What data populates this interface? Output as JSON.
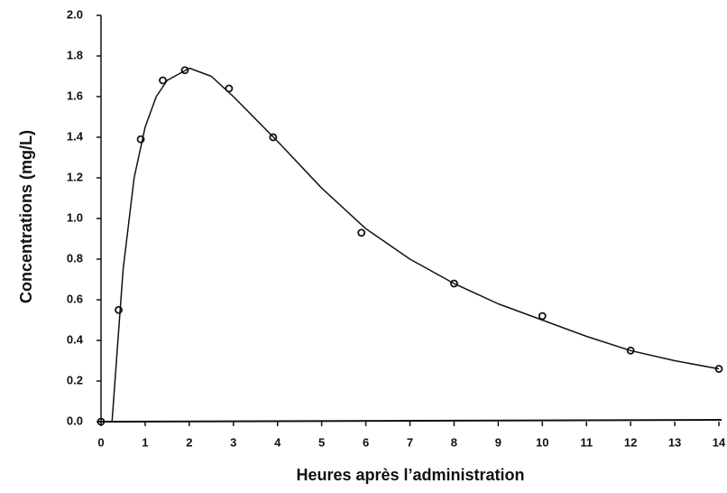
{
  "chart_data": {
    "type": "scatter",
    "x_label": "Heures après l’administration",
    "y_label": "Concentrations (mg/L)",
    "xlim": [
      0,
      14
    ],
    "xticks": [
      0,
      1,
      2,
      3,
      4,
      5,
      6,
      7,
      8,
      9,
      10,
      11,
      12,
      13,
      14
    ],
    "ylim": [
      0,
      2
    ],
    "yticks": [
      {
        "value": 0,
        "label": "0.0"
      },
      0.2,
      0.4,
      0.6,
      0.8,
      {
        "value": 1,
        "label": "1.0"
      },
      1.2,
      1.4,
      1.6,
      1.8,
      {
        "value": 2,
        "label": "2.0"
      }
    ],
    "grid": false,
    "series": [
      {
        "type": "scatter",
        "color": "#111111",
        "x": [
          0,
          0.4,
          0.9,
          1.4,
          1.9,
          2.9,
          3.9,
          5.9,
          8,
          10,
          12,
          14
        ],
        "values": [
          0,
          0.55,
          1.39,
          1.68,
          1.73,
          1.64,
          1.4,
          0.93,
          0.68,
          0.52,
          0.35,
          0.26
        ]
      },
      {
        "type": "line",
        "color": "#111111",
        "x": [
          0.25,
          0.5,
          0.75,
          1,
          1.25,
          1.5,
          2,
          2.5,
          3,
          4,
          5,
          6,
          7,
          8,
          9,
          10,
          11,
          12,
          13,
          14
        ],
        "values": [
          0,
          0.75,
          1.2,
          1.45,
          1.6,
          1.68,
          1.74,
          1.7,
          1.6,
          1.38,
          1.15,
          0.95,
          0.8,
          0.68,
          0.58,
          0.5,
          0.42,
          0.35,
          0.3,
          0.26
        ]
      }
    ]
  }
}
